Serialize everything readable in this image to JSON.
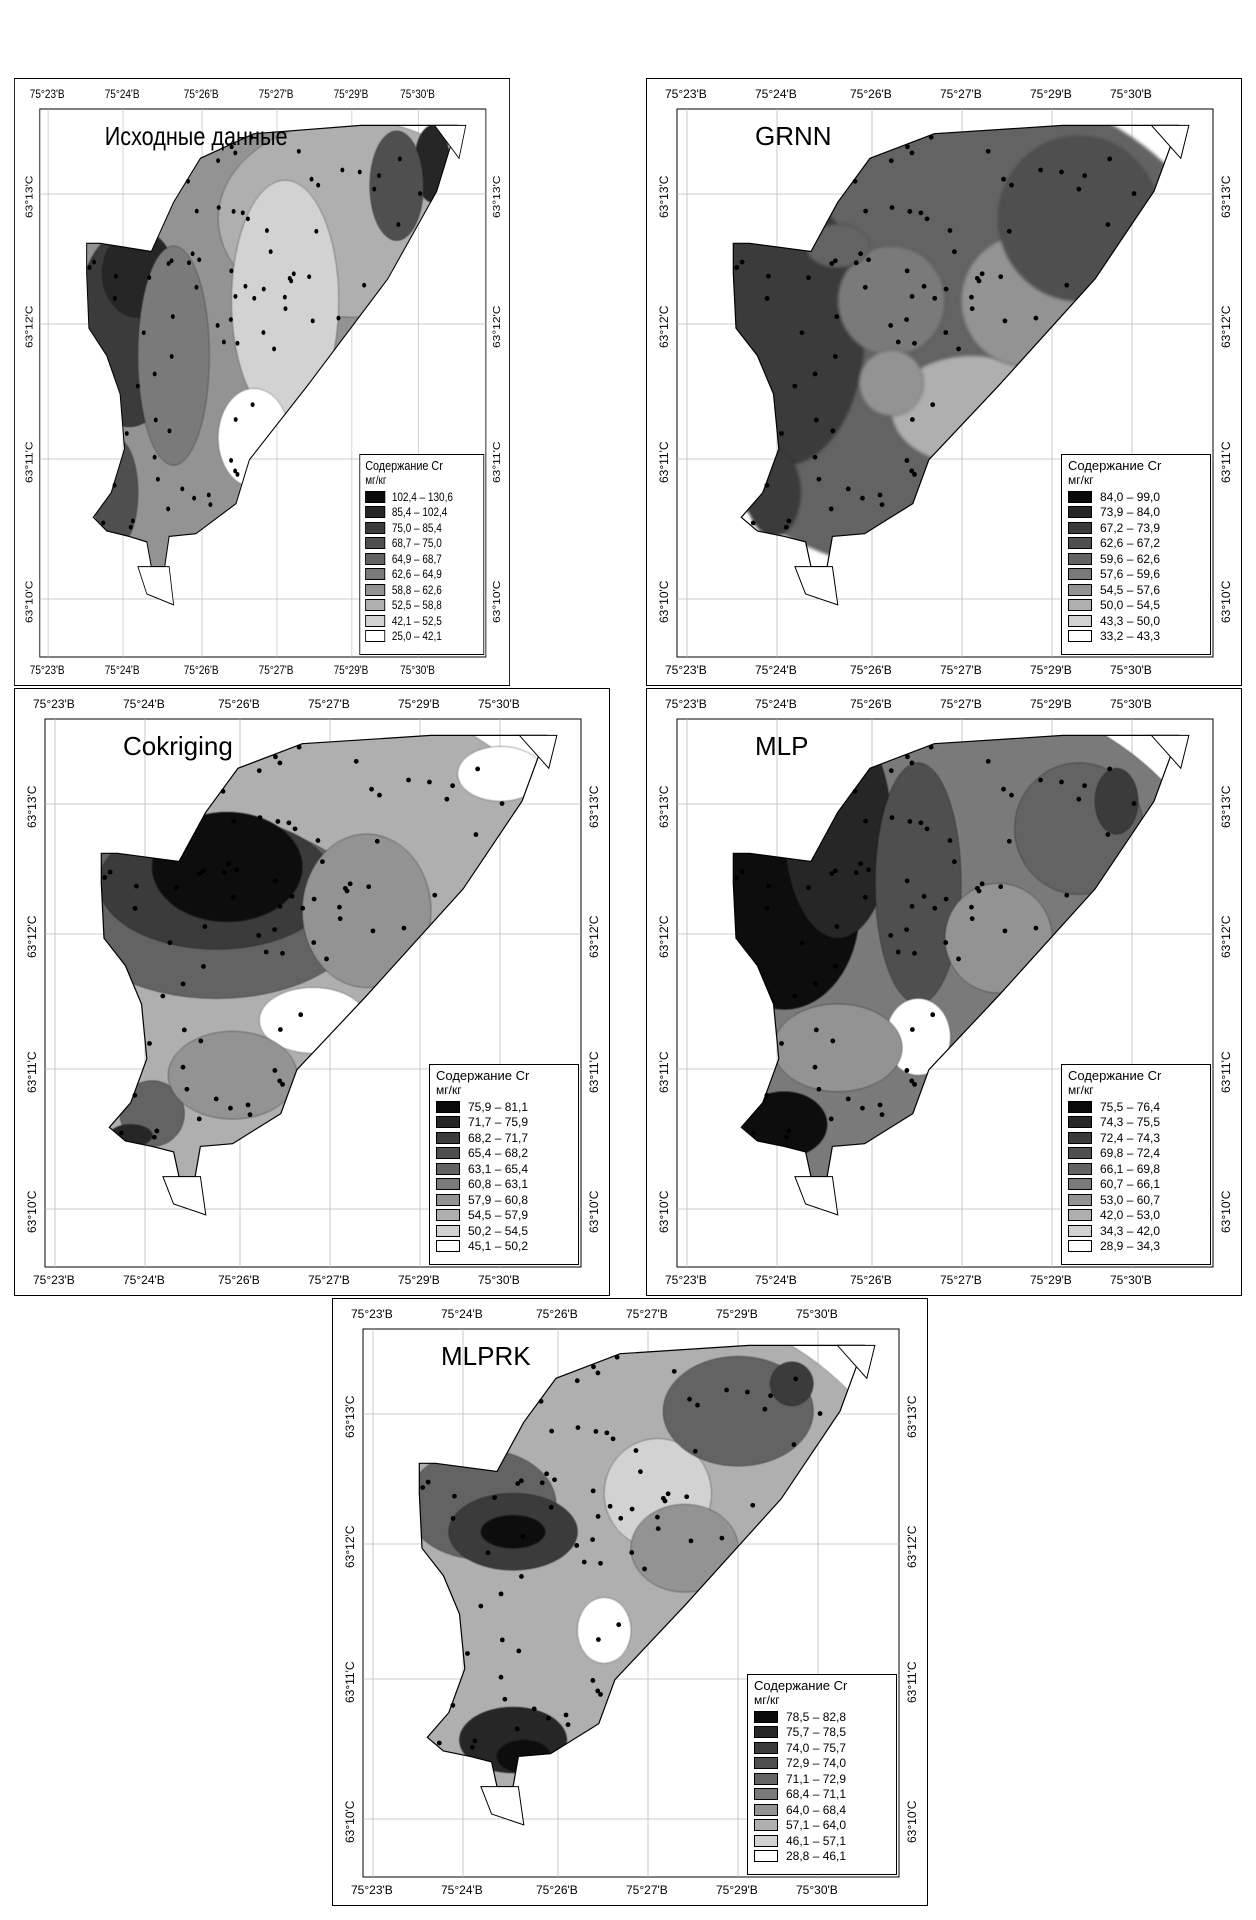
{
  "lon_labels": [
    "75°23'В",
    "75°24'В",
    "75°26'В",
    "75°27'В",
    "75°29'В",
    "75°30'В"
  ],
  "lat_labels": [
    "63°13'С",
    "63°12'С",
    "63°11'С",
    "63°10'С"
  ],
  "panels": [
    {
      "id": "source",
      "title": "Исходные данные",
      "legend_title": "Содержание Cr",
      "legend_unit": "мг/кг",
      "legend": [
        "102,4 – 130,6",
        "85,4 – 102,4",
        "75,0 – 85,4",
        "68,7 – 75,0",
        "64,9 – 68,7",
        "62,6 – 64,9",
        "58,8 – 62,6",
        "52,5 – 58,8",
        "42,1 – 52,5",
        "25,0 – 42,1"
      ],
      "colors": [
        "#0a0a0a",
        "#262626",
        "#3b3b3b",
        "#4f4f4f",
        "#636363",
        "#7a7a7a",
        "#939393",
        "#afafaf",
        "#d2d2d2",
        "#ffffff"
      ]
    },
    {
      "id": "grnn",
      "title": "GRNN",
      "legend_title": "Содержание Cr",
      "legend_unit": "мг/кг",
      "legend": [
        "84,0 – 99,0",
        "73,9 – 84,0",
        "67,2 – 73,9",
        "62,6 – 67,2",
        "59,6 – 62,6",
        "57,6 – 59,6",
        "54,5 – 57,6",
        "50,0 – 54,5",
        "43,3 – 50,0",
        "33,2 – 43,3"
      ],
      "colors": [
        "#0a0a0a",
        "#262626",
        "#3b3b3b",
        "#4f4f4f",
        "#636363",
        "#7a7a7a",
        "#939393",
        "#afafaf",
        "#d2d2d2",
        "#ffffff"
      ]
    },
    {
      "id": "cokriging",
      "title": "Cokriging",
      "legend_title": "Содержание Cr",
      "legend_unit": "мг/кг",
      "legend": [
        "75,9 – 81,1",
        "71,7 – 75,9",
        "68,2 – 71,7",
        "65,4 – 68,2",
        "63,1 – 65,4",
        "60,8 – 63,1",
        "57,9 – 60,8",
        "54,5 – 57,9",
        "50,2 – 54,5",
        "45,1 – 50,2"
      ],
      "colors": [
        "#0a0a0a",
        "#262626",
        "#3b3b3b",
        "#4f4f4f",
        "#636363",
        "#7a7a7a",
        "#939393",
        "#afafaf",
        "#d2d2d2",
        "#ffffff"
      ]
    },
    {
      "id": "mlp",
      "title": "MLP",
      "legend_title": "Содержание Cr",
      "legend_unit": "мг/кг",
      "legend": [
        "75,5 – 76,4",
        "74,3 – 75,5",
        "72,4 – 74,3",
        "69,8 – 72,4",
        "66,1 – 69,8",
        "60,7 – 66,1",
        "53,0 – 60,7",
        "42,0 – 53,0",
        "34,3 – 42,0",
        "28,9 – 34,3"
      ],
      "colors": [
        "#0a0a0a",
        "#262626",
        "#3b3b3b",
        "#4f4f4f",
        "#636363",
        "#7a7a7a",
        "#939393",
        "#afafaf",
        "#d2d2d2",
        "#ffffff"
      ]
    },
    {
      "id": "mlprk",
      "title": "MLPRK",
      "legend_title": "Содержание Cr",
      "legend_unit": "мг/кг",
      "legend": [
        "78,5 – 82,8",
        "75,7 – 78,5",
        "74,0 – 75,7",
        "72,9 – 74,0",
        "71,1 – 72,9",
        "68,4 – 71,1",
        "64,0 – 68,4",
        "57,1 – 64,0",
        "46,1 – 57,1",
        "28,8 – 46,1"
      ],
      "colors": [
        "#0a0a0a",
        "#262626",
        "#3b3b3b",
        "#4f4f4f",
        "#636363",
        "#7a7a7a",
        "#939393",
        "#afafaf",
        "#d2d2d2",
        "#ffffff"
      ]
    }
  ]
}
